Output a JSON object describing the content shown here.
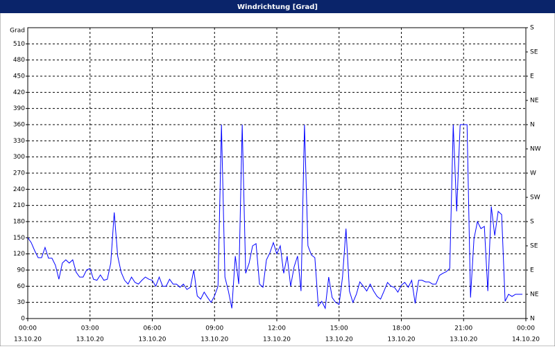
{
  "chart_data": {
    "type": "line",
    "title": "Windrichtung [Grad]",
    "ylabel": "Grad",
    "xlim": [
      0,
      1440
    ],
    "ylim": [
      0,
      540
    ],
    "y2lim": [
      0,
      540
    ],
    "xticks": [
      {
        "value": 0,
        "label": "00:00",
        "date": "13.10.20"
      },
      {
        "value": 180,
        "label": "03:00",
        "date": "13.10.20"
      },
      {
        "value": 360,
        "label": "06:00",
        "date": "13.10.20"
      },
      {
        "value": 540,
        "label": "09:00",
        "date": "13.10.20"
      },
      {
        "value": 720,
        "label": "12:00",
        "date": "13.10.20"
      },
      {
        "value": 900,
        "label": "15:00",
        "date": "13.10.20"
      },
      {
        "value": 1080,
        "label": "18:00",
        "date": "13.10.20"
      },
      {
        "value": 1260,
        "label": "21:00",
        "date": "13.10.20"
      },
      {
        "value": 1440,
        "label": "00:00",
        "date": "14.10.20"
      }
    ],
    "yticks": [
      0,
      30,
      60,
      90,
      120,
      150,
      180,
      210,
      240,
      270,
      300,
      330,
      360,
      390,
      420,
      450,
      480,
      510
    ],
    "y2ticks": [
      {
        "value": 0,
        "label": "N"
      },
      {
        "value": 45,
        "label": "NE"
      },
      {
        "value": 90,
        "label": "E"
      },
      {
        "value": 135,
        "label": "SE"
      },
      {
        "value": 180,
        "label": "S"
      },
      {
        "value": 225,
        "label": "SW"
      },
      {
        "value": 270,
        "label": "W"
      },
      {
        "value": 315,
        "label": "NW"
      },
      {
        "value": 360,
        "label": "N"
      },
      {
        "value": 405,
        "label": "NE"
      },
      {
        "value": 450,
        "label": "E"
      },
      {
        "value": 495,
        "label": "SE"
      },
      {
        "value": 540,
        "label": "S"
      }
    ],
    "grid": true,
    "x": [
      0,
      10,
      20,
      30,
      40,
      50,
      60,
      70,
      80,
      90,
      100,
      110,
      120,
      130,
      140,
      150,
      160,
      170,
      180,
      190,
      200,
      210,
      220,
      230,
      240,
      250,
      260,
      270,
      280,
      290,
      300,
      310,
      320,
      330,
      340,
      350,
      360,
      370,
      380,
      390,
      400,
      410,
      420,
      430,
      440,
      450,
      460,
      470,
      480,
      490,
      500,
      510,
      520,
      530,
      540,
      550,
      560,
      570,
      580,
      590,
      600,
      610,
      620,
      630,
      640,
      650,
      660,
      670,
      680,
      690,
      700,
      710,
      720,
      730,
      740,
      750,
      760,
      770,
      780,
      790,
      800,
      810,
      820,
      830,
      840,
      850,
      860,
      870,
      880,
      890,
      900,
      910,
      920,
      930,
      940,
      950,
      960,
      970,
      980,
      990,
      1000,
      1010,
      1020,
      1030,
      1040,
      1050,
      1060,
      1070,
      1080,
      1090,
      1100,
      1110,
      1120,
      1130,
      1140,
      1150,
      1160,
      1170,
      1180,
      1190,
      1200,
      1210,
      1220,
      1230,
      1240,
      1250,
      1260,
      1270,
      1280,
      1290,
      1300,
      1310,
      1320,
      1330,
      1340,
      1350,
      1360,
      1370,
      1380,
      1390,
      1400,
      1410,
      1420,
      1430
    ],
    "series": [
      {
        "color": "#0000ff",
        "values": [
          150,
          141,
          126,
          113,
          113,
          132,
          112,
          112,
          99,
          73,
          103,
          109,
          103,
          109,
          86,
          77,
          77,
          90,
          93,
          73,
          71,
          81,
          71,
          73,
          103,
          197,
          116,
          86,
          71,
          64,
          77,
          67,
          64,
          71,
          77,
          73,
          71,
          60,
          77,
          60,
          60,
          73,
          64,
          64,
          58,
          64,
          54,
          58,
          90,
          42,
          36,
          49,
          39,
          30,
          42,
          60,
          360,
          77,
          51,
          19,
          116,
          64,
          360,
          84,
          103,
          135,
          139,
          64,
          58,
          109,
          122,
          141,
          120,
          135,
          84,
          116,
          60,
          96,
          116,
          51,
          360,
          135,
          118,
          113,
          23,
          32,
          19,
          77,
          39,
          30,
          26,
          77,
          167,
          51,
          30,
          45,
          68,
          60,
          51,
          64,
          51,
          41,
          36,
          51,
          67,
          60,
          58,
          49,
          62,
          67,
          58,
          71,
          28,
          71,
          71,
          68,
          68,
          64,
          64,
          80,
          84,
          87,
          93,
          360,
          199,
          360,
          360,
          360,
          39,
          148,
          180,
          167,
          171,
          51,
          208,
          154,
          199,
          193,
          32,
          45,
          41,
          45,
          45,
          45
        ]
      }
    ]
  }
}
